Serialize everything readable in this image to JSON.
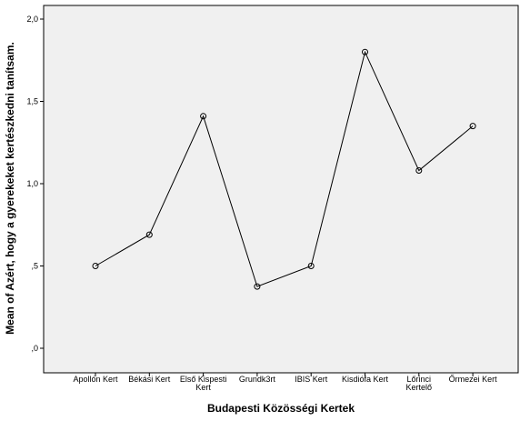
{
  "chart_data": {
    "type": "line",
    "xlabel": "Budapesti Közösségi Kertek",
    "ylabel": "Mean of Azért, hogy a gyerekeket kertészkedni tanítsam.",
    "categories": [
      [
        "Apollón Kert"
      ],
      [
        "Békási Kert"
      ],
      [
        "Első Kispesti",
        "Kert"
      ],
      [
        "Grundk3rt"
      ],
      [
        "IBIS Kert"
      ],
      [
        "Kisdiófa Kert"
      ],
      [
        "Lőrinci",
        "Kertelő"
      ],
      [
        "Őrmezei Kert"
      ]
    ],
    "values": [
      0.5,
      0.69,
      1.41,
      0.375,
      0.5,
      1.8,
      1.08,
      1.35
    ],
    "ylim": [
      0,
      2.0
    ],
    "yticks": [
      0,
      0.5,
      1.0,
      1.5,
      2.0
    ],
    "ytick_labels": [
      ",0",
      ",5",
      "1,0",
      "1,5",
      "2,0"
    ],
    "grid": false,
    "plot_background": "#f0f0f0",
    "line_color": "#000000",
    "marker": "open-circle"
  }
}
